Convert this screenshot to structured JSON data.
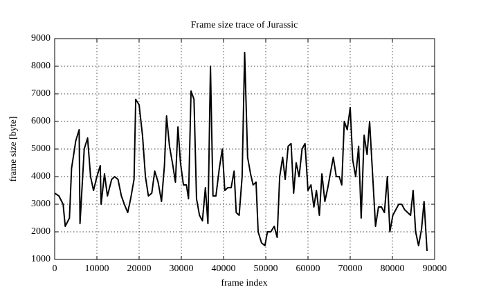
{
  "chart_data": {
    "type": "line",
    "title": "Frame size trace of Jurassic",
    "x_label": "frame index",
    "y_label": "frame size [byte]",
    "x": [
      0,
      1000,
      2000,
      2500,
      3500,
      4000,
      5000,
      5800,
      6000,
      7000,
      7800,
      8500,
      9200,
      10000,
      10800,
      11000,
      11800,
      12500,
      13500,
      14200,
      15000,
      15800,
      16500,
      17300,
      18000,
      18800,
      19200,
      20000,
      20800,
      21500,
      22200,
      23000,
      23700,
      24500,
      25300,
      26000,
      26500,
      27200,
      28000,
      28600,
      29200,
      29800,
      30500,
      31200,
      31700,
      32300,
      33000,
      33600,
      34300,
      35000,
      35700,
      36300,
      36900,
      37500,
      38200,
      39000,
      39700,
      40300,
      41000,
      41800,
      42500,
      43000,
      43700,
      44400,
      45000,
      45700,
      46400,
      47000,
      47700,
      48200,
      49000,
      49800,
      50400,
      51200,
      52000,
      52700,
      53300,
      54000,
      54600,
      55300,
      56000,
      56600,
      57200,
      57900,
      58600,
      59300,
      60000,
      60700,
      61400,
      62000,
      62700,
      63300,
      64000,
      64700,
      65400,
      66000,
      66700,
      67400,
      68000,
      68600,
      69300,
      70000,
      70600,
      71300,
      72000,
      72600,
      73300,
      74000,
      74600,
      75300,
      76000,
      76700,
      77400,
      78100,
      78800,
      79400,
      80100,
      80800,
      81500,
      82200,
      82900,
      83600,
      84300,
      84900,
      85500,
      86200,
      86900,
      87500,
      88200
    ],
    "series": [
      {
        "name": "frame size",
        "color": "#000000",
        "values": [
          3400,
          3300,
          3000,
          2200,
          2500,
          4300,
          5300,
          5700,
          2300,
          5000,
          5400,
          4000,
          3500,
          4000,
          4400,
          3000,
          4100,
          3300,
          3900,
          4000,
          3900,
          3300,
          3000,
          2700,
          3200,
          3900,
          6800,
          6600,
          5500,
          4000,
          3300,
          3400,
          4200,
          3800,
          3100,
          4400,
          6200,
          5100,
          4400,
          3800,
          5800,
          4500,
          3700,
          3700,
          3200,
          7100,
          6800,
          3200,
          2600,
          2400,
          3600,
          2300,
          8000,
          3300,
          3300,
          4300,
          5000,
          3500,
          3600,
          3600,
          4200,
          2700,
          2600,
          4000,
          8500,
          4700,
          4100,
          3700,
          3800,
          2000,
          1600,
          1500,
          2000,
          2000,
          2200,
          1800,
          4000,
          4700,
          3900,
          5100,
          5200,
          3400,
          4500,
          4000,
          5000,
          5200,
          3500,
          3700,
          2900,
          3500,
          2600,
          4100,
          3100,
          3600,
          4200,
          4700,
          4000,
          4000,
          3700,
          6000,
          5700,
          6500,
          4600,
          4000,
          5100,
          2500,
          5500,
          4800,
          6000,
          4100,
          2200,
          2900,
          2900,
          2700,
          4000,
          2000,
          2600,
          2800,
          3000,
          3000,
          2800,
          2700,
          2600,
          3500,
          2000,
          1500,
          2100,
          3100,
          1300
        ]
      }
    ],
    "xlim": [
      0,
      90000
    ],
    "ylim": [
      1000,
      9000
    ],
    "xticks": [
      0,
      10000,
      20000,
      30000,
      40000,
      50000,
      60000,
      70000,
      80000,
      90000
    ],
    "yticks": [
      1000,
      2000,
      3000,
      4000,
      5000,
      6000,
      7000,
      8000,
      9000
    ],
    "grid": true
  }
}
